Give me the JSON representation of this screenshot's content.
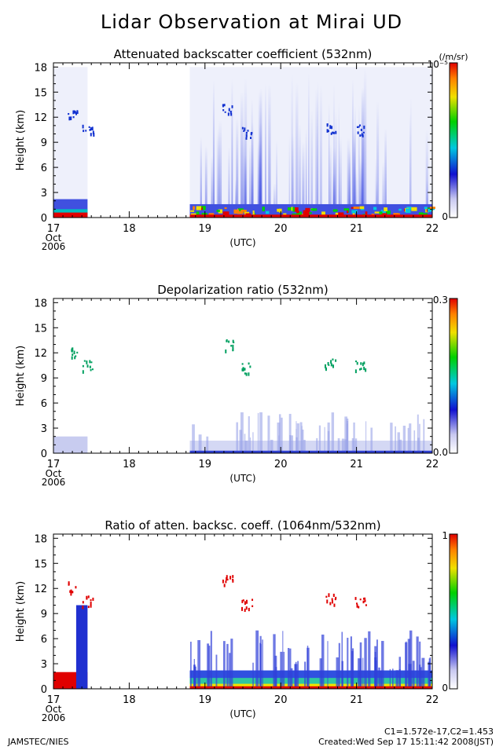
{
  "title": "Lidar Observation at Mirai UD",
  "footer": {
    "left": "JAMSTEC/NIES",
    "constants": "C1=1.572e-17,C2=1.453",
    "created": "Created:Wed Sep 17 15:11:42 2008(JST)"
  },
  "chart_data": [
    {
      "type": "heatmap",
      "title": "Attenuated backscatter coefficient (532nm)",
      "ylabel": "Height (km)",
      "xlabel": "(UTC)",
      "x_ticks": [
        "17",
        "18",
        "19",
        "20",
        "21",
        "22"
      ],
      "x_sub": [
        "Oct",
        "2006"
      ],
      "xlim": [
        17,
        22
      ],
      "y_ticks": [
        "0",
        "3",
        "6",
        "9",
        "12",
        "15",
        "18"
      ],
      "ylim": [
        0,
        18.5
      ],
      "colorbar": {
        "max_label": "10⁻⁵",
        "min_label": "0",
        "unit": "(/m/sr)"
      }
    },
    {
      "type": "heatmap",
      "title": "Depolarization ratio (532nm)",
      "ylabel": "Height (km)",
      "xlabel": "(UTC)",
      "x_ticks": [
        "17",
        "18",
        "19",
        "20",
        "21",
        "22"
      ],
      "x_sub": [
        "Oct",
        "2006"
      ],
      "xlim": [
        17,
        22
      ],
      "y_ticks": [
        "0",
        "3",
        "6",
        "9",
        "12",
        "15",
        "18"
      ],
      "ylim": [
        0,
        18.5
      ],
      "colorbar": {
        "max_label": "0.3",
        "min_label": "0.0"
      }
    },
    {
      "type": "heatmap",
      "title": "Ratio of atten. backsc. coeff. (1064nm/532nm)",
      "ylabel": "Height (km)",
      "xlabel": "(UTC)",
      "x_ticks": [
        "17",
        "18",
        "19",
        "20",
        "21",
        "22"
      ],
      "x_sub": [
        "Oct",
        "2006"
      ],
      "xlim": [
        17,
        22
      ],
      "y_ticks": [
        "0",
        "3",
        "6",
        "9",
        "12",
        "15",
        "18"
      ],
      "ylim": [
        0,
        18.5
      ],
      "colorbar": {
        "max_label": "1",
        "min_label": "0"
      }
    }
  ]
}
